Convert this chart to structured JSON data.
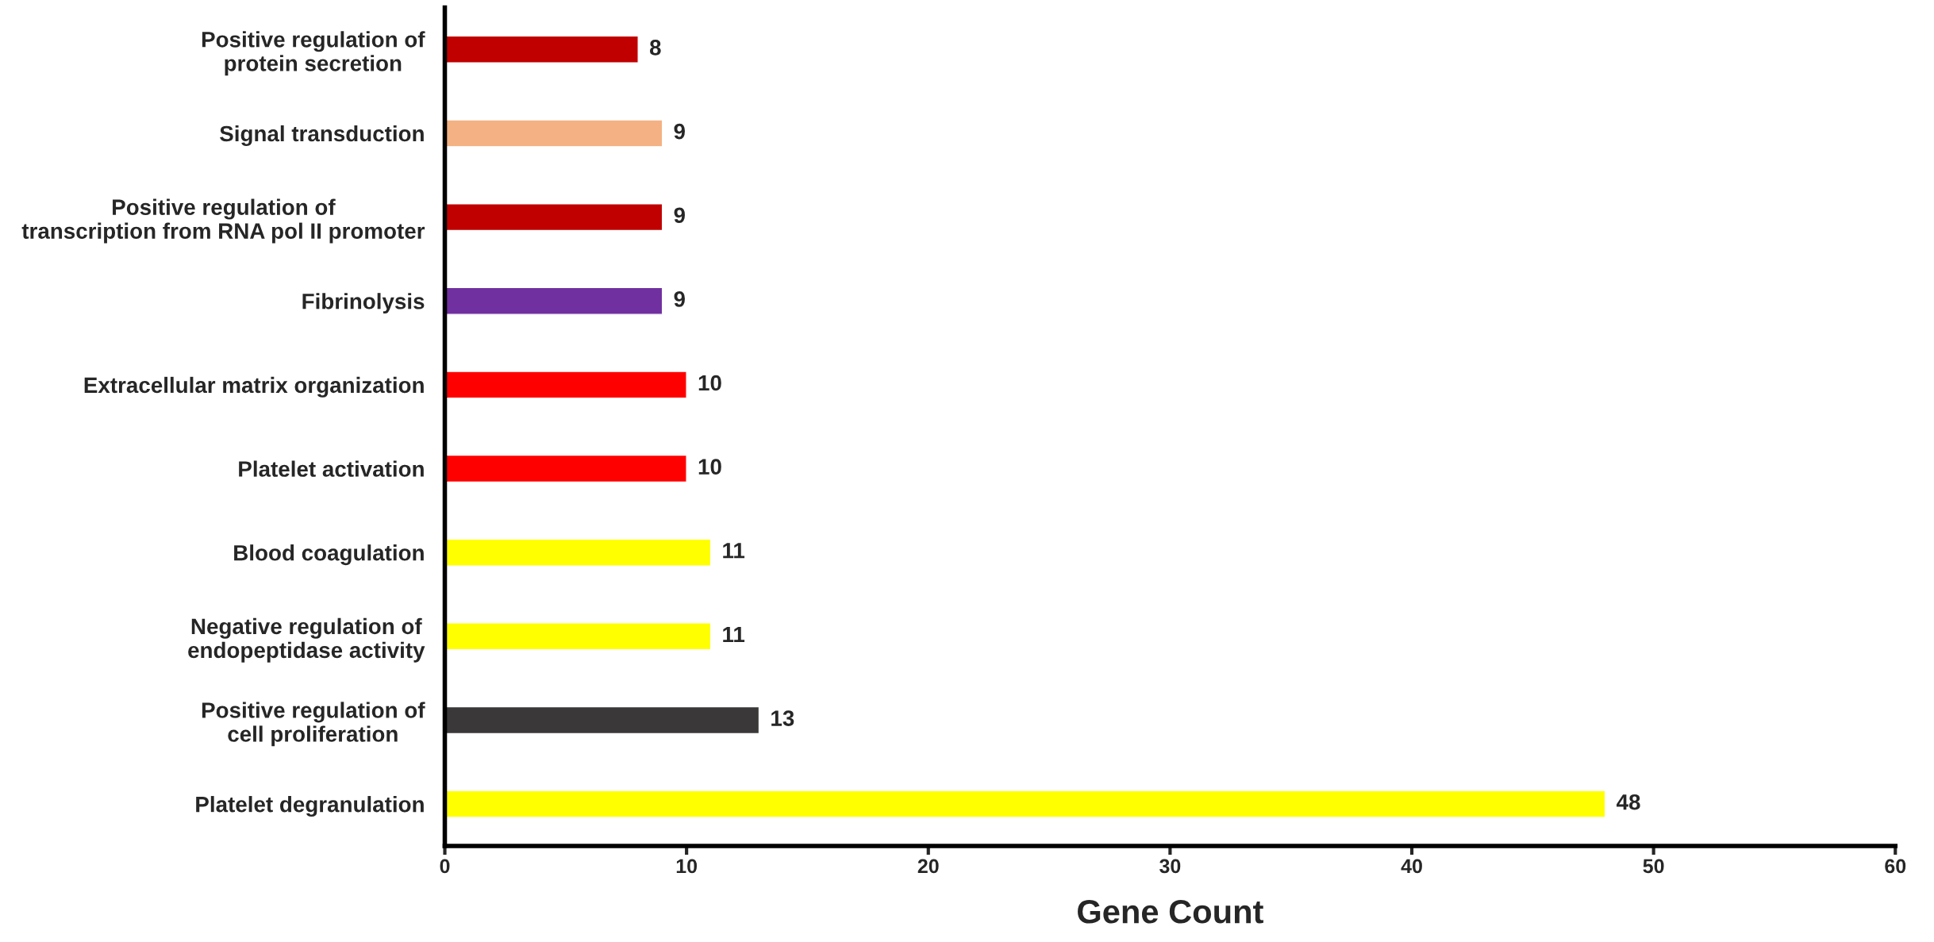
{
  "chart_data": {
    "type": "bar",
    "orientation": "horizontal",
    "xlabel": "Gene Count",
    "categories": [
      "Positive regulation of\nprotein secretion",
      "Signal transduction",
      "Positive regulation of\ntranscription from RNA pol II promoter",
      "Fibrinolysis",
      "Extracellular matrix organization",
      "Platelet activation",
      "Blood coagulation",
      "Negative regulation of\nendopeptidase activity",
      "Positive regulation of\ncell proliferation",
      "Platelet degranulation"
    ],
    "values": [
      8,
      9,
      9,
      9,
      10,
      10,
      11,
      11,
      13,
      48
    ],
    "colors": [
      "#c00000",
      "#f4b183",
      "#c00000",
      "#7030a0",
      "#ff0000",
      "#ff0000",
      "#ffff00",
      "#ffff00",
      "#3a3838",
      "#ffff00"
    ],
    "xlim": [
      0,
      60
    ],
    "xticks": [
      0,
      10,
      20,
      30,
      40,
      50,
      60
    ],
    "data_labels": true,
    "grid": false,
    "legend": false
  }
}
